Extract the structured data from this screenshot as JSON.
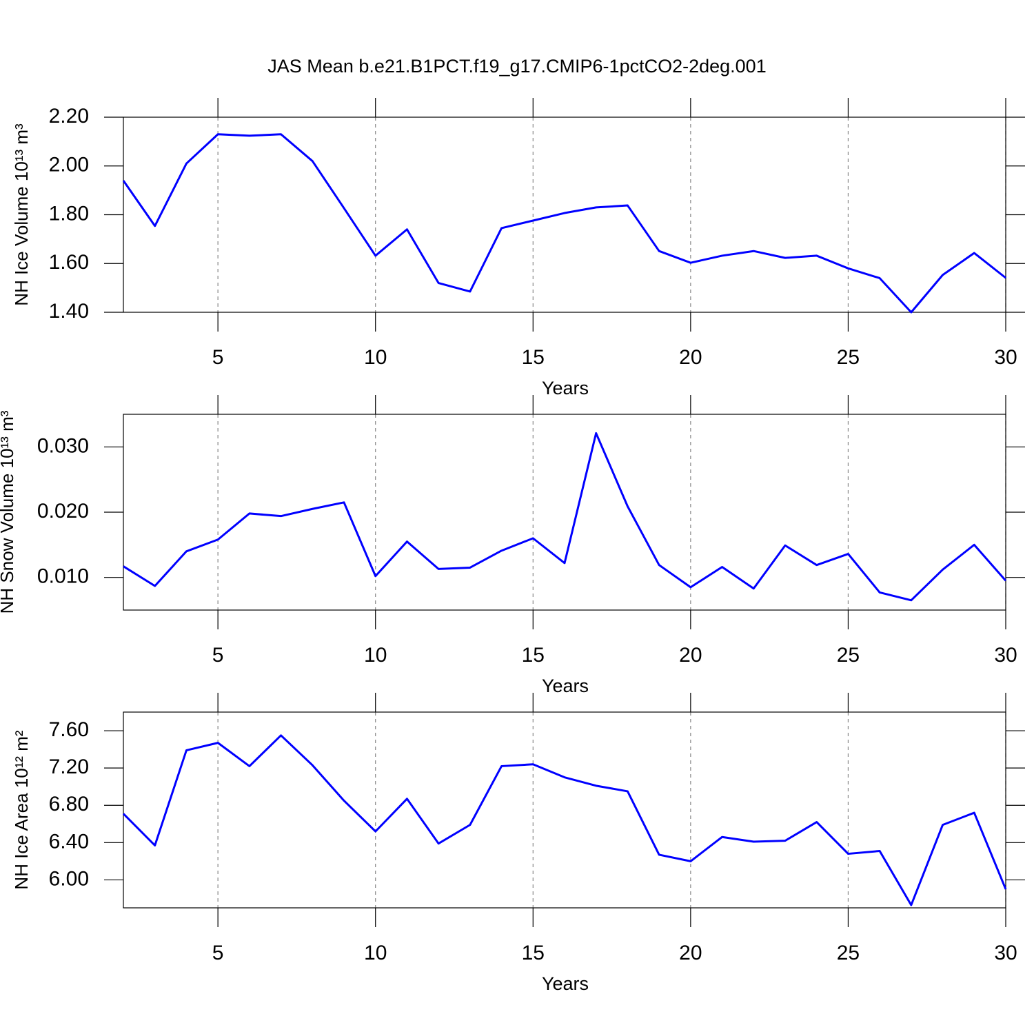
{
  "chart_data": [
    {
      "type": "line",
      "title": "JAS Mean b.e21.B1PCT.f19_g17.CMIP6-1pctCO2-2deg.001",
      "xlabel": "Years",
      "ylabel": "NH Ice Volume 10¹³ m³",
      "x": [
        2,
        3,
        4,
        5,
        6,
        7,
        8,
        9,
        10,
        11,
        12,
        13,
        14,
        15,
        16,
        17,
        18,
        19,
        20,
        21,
        22,
        23,
        24,
        25,
        26,
        27,
        28,
        29,
        30
      ],
      "series": [
        {
          "color": "#0000ff",
          "values": [
            1.94,
            1.754,
            2.01,
            2.13,
            2.124,
            2.13,
            2.02,
            1.827,
            1.632,
            1.74,
            1.52,
            1.485,
            1.745,
            1.776,
            1.807,
            1.83,
            1.838,
            1.651,
            1.603,
            1.632,
            1.651,
            1.623,
            1.632,
            1.58,
            1.54,
            1.4,
            1.553,
            1.643,
            1.541
          ]
        }
      ],
      "xlim": [
        2,
        30
      ],
      "xticks": [
        5,
        10,
        15,
        20,
        25,
        30
      ],
      "ylim": [
        1.4,
        2.2
      ],
      "yticks": [
        {
          "value": 1.4,
          "label": "1.40"
        },
        {
          "value": 1.6,
          "label": "1.60"
        },
        {
          "value": 1.8,
          "label": "1.80"
        },
        {
          "value": 2.0,
          "label": "2.00"
        },
        {
          "value": 2.2,
          "label": "2.20"
        }
      ],
      "xgrid": true
    },
    {
      "type": "line",
      "xlabel": "Years",
      "ylabel": "NH Snow Volume 10¹³ m³",
      "x": [
        2,
        3,
        4,
        5,
        6,
        7,
        8,
        9,
        10,
        11,
        12,
        13,
        14,
        15,
        16,
        17,
        18,
        19,
        20,
        21,
        22,
        23,
        24,
        25,
        26,
        27,
        28,
        29,
        30
      ],
      "series": [
        {
          "color": "#0000ff",
          "values": [
            0.0117,
            0.0087,
            0.014,
            0.0158,
            0.0198,
            0.0194,
            0.0205,
            0.0215,
            0.0102,
            0.0155,
            0.0113,
            0.0115,
            0.0141,
            0.016,
            0.0122,
            0.0321,
            0.0209,
            0.0119,
            0.0085,
            0.0116,
            0.0083,
            0.0149,
            0.0119,
            0.0136,
            0.0077,
            0.0065,
            0.0112,
            0.015,
            0.0095
          ]
        }
      ],
      "xlim": [
        2,
        30
      ],
      "xticks": [
        5,
        10,
        15,
        20,
        25,
        30
      ],
      "ylim": [
        0.005,
        0.035
      ],
      "yticks": [
        {
          "value": 0.01,
          "label": "0.010"
        },
        {
          "value": 0.02,
          "label": "0.020"
        },
        {
          "value": 0.03,
          "label": "0.030"
        }
      ],
      "xgrid": true
    },
    {
      "type": "line",
      "xlabel": "Years",
      "ylabel": "NH Ice Area 10¹² m²",
      "x": [
        2,
        3,
        4,
        5,
        6,
        7,
        8,
        9,
        10,
        11,
        12,
        13,
        14,
        15,
        16,
        17,
        18,
        19,
        20,
        21,
        22,
        23,
        24,
        25,
        26,
        27,
        28,
        29,
        30
      ],
      "series": [
        {
          "color": "#0000ff",
          "values": [
            6.71,
            6.37,
            7.39,
            7.47,
            7.22,
            7.55,
            7.23,
            6.85,
            6.52,
            6.87,
            6.39,
            6.59,
            7.22,
            7.24,
            7.1,
            7.01,
            6.95,
            6.27,
            6.2,
            6.46,
            6.41,
            6.42,
            6.62,
            6.28,
            6.31,
            5.73,
            6.59,
            6.72,
            5.9
          ]
        }
      ],
      "xlim": [
        2,
        30
      ],
      "xticks": [
        5,
        10,
        15,
        20,
        25,
        30
      ],
      "ylim": [
        5.7,
        7.8
      ],
      "yticks": [
        {
          "value": 6.0,
          "label": "6.00"
        },
        {
          "value": 6.4,
          "label": "6.40"
        },
        {
          "value": 6.8,
          "label": "6.80"
        },
        {
          "value": 7.2,
          "label": "7.20"
        },
        {
          "value": 7.6,
          "label": "7.60"
        }
      ],
      "xgrid": true
    }
  ]
}
